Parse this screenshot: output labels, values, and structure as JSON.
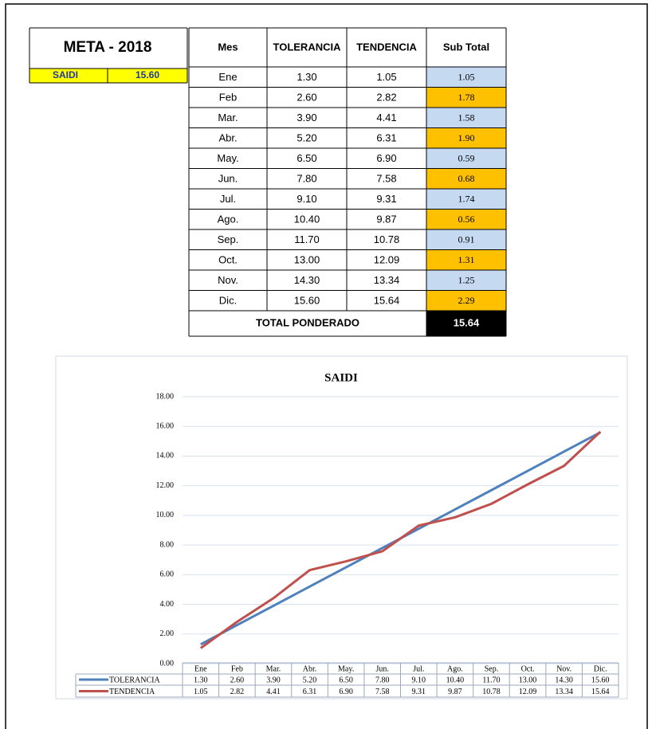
{
  "meta": {
    "title": "META - 2018",
    "label": "SAIDI",
    "value": "15.60",
    "color": "#ffff00",
    "text_color": "#1f3a9e"
  },
  "table": {
    "header": [
      "Mes",
      "TOLERANCIA",
      "TENDENCIA",
      "Sub Total"
    ],
    "rows": [
      [
        "Ene",
        "1.30",
        "1.05",
        "1.05"
      ],
      [
        "Feb",
        "2.60",
        "2.82",
        "1.78"
      ],
      [
        "Mar.",
        "3.90",
        "4.41",
        "1.58"
      ],
      [
        "Abr.",
        "5.20",
        "6.31",
        "1.90"
      ],
      [
        "May.",
        "6.50",
        "6.90",
        "0.59"
      ],
      [
        "Jun.",
        "7.80",
        "7.58",
        "0.68"
      ],
      [
        "Jul.",
        "9.10",
        "9.31",
        "1.74"
      ],
      [
        "Ago.",
        "10.40",
        "9.87",
        "0.56"
      ],
      [
        "Sep.",
        "11.70",
        "10.78",
        "0.91"
      ],
      [
        "Oct.",
        "13.00",
        "12.09",
        "1.31"
      ],
      [
        "Nov.",
        "14.30",
        "13.34",
        "1.25"
      ],
      [
        "Dic.",
        "15.60",
        "15.64",
        "2.29"
      ]
    ],
    "total_label": "TOTAL PONDERADO",
    "total": "15.64",
    "subtotal_colors": [
      "#c5d9f1",
      "#ffc000"
    ]
  },
  "chart_data": {
    "type": "line",
    "title": "SAIDI",
    "categories": [
      "Ene",
      "Feb",
      "Mar.",
      "Abr.",
      "May.",
      "Jun.",
      "Jul.",
      "Ago.",
      "Sep.",
      "Oct.",
      "Nov.",
      "Dic."
    ],
    "series": [
      {
        "name": "TOLERANCIA",
        "color": "#4f81bd",
        "values": [
          1.3,
          2.6,
          3.9,
          5.2,
          6.5,
          7.8,
          9.1,
          10.4,
          11.7,
          13.0,
          14.3,
          15.6
        ],
        "value_labels": [
          "1.30",
          "2.60",
          "3.90",
          "5.20",
          "6.50",
          "7.80",
          "9.10",
          "10.40",
          "11.70",
          "13.00",
          "14.30",
          "15.60"
        ]
      },
      {
        "name": "TENDENCIA",
        "color": "#c0504d",
        "values": [
          1.05,
          2.82,
          4.41,
          6.31,
          6.9,
          7.58,
          9.31,
          9.87,
          10.78,
          12.09,
          13.34,
          15.64
        ],
        "value_labels": [
          "1.05",
          "2.82",
          "4.41",
          "6.31",
          "6.90",
          "7.58",
          "9.31",
          "9.87",
          "10.78",
          "12.09",
          "13.34",
          "15.64"
        ]
      }
    ],
    "ylim": [
      0,
      18
    ],
    "yticks": [
      {
        "value": 0,
        "label": "0.00"
      },
      {
        "value": 2,
        "label": "2.00"
      },
      {
        "value": 4,
        "label": "4.00"
      },
      {
        "value": 6,
        "label": "6.00"
      },
      {
        "value": 8,
        "label": "8.00"
      },
      {
        "value": 10,
        "label": "10.00"
      },
      {
        "value": 12,
        "label": "12.00"
      },
      {
        "value": 14,
        "label": "14.00"
      },
      {
        "value": 16,
        "label": "16.00"
      },
      {
        "value": 18,
        "label": "18.00"
      }
    ],
    "grid": true,
    "data_table": true
  }
}
